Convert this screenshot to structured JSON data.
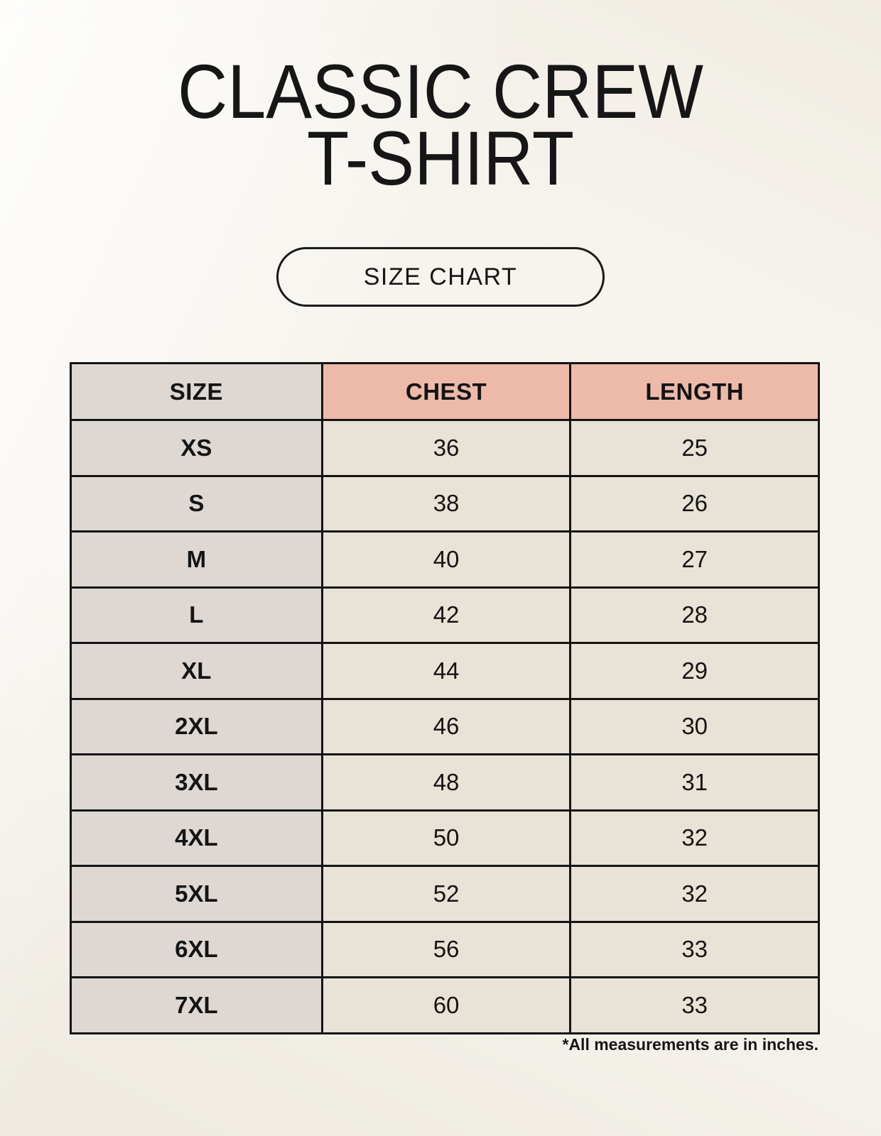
{
  "header": {
    "title_line1": "CLASSIC CREW",
    "title_line2": "T-SHIRT",
    "button_label": "SIZE CHART"
  },
  "colors": {
    "page_background": "#f7f4ee",
    "header_pink": "#edbaaa",
    "size_column_gray": "#ded7d2",
    "cell_cream": "#e9e2d6",
    "border_black": "#141414"
  },
  "chart_data": {
    "type": "table",
    "title": "CLASSIC CREW T-SHIRT",
    "subtitle": "SIZE CHART",
    "note": "*All measurements are in inches.",
    "columns": [
      "SIZE",
      "CHEST",
      "LENGTH"
    ],
    "rows": [
      {
        "size": "XS",
        "chest": "36",
        "length": "25"
      },
      {
        "size": "S",
        "chest": "38",
        "length": "26"
      },
      {
        "size": "M",
        "chest": "40",
        "length": "27"
      },
      {
        "size": "L",
        "chest": "42",
        "length": "28"
      },
      {
        "size": "XL",
        "chest": "44",
        "length": "29"
      },
      {
        "size": "2XL",
        "chest": "46",
        "length": "30"
      },
      {
        "size": "3XL",
        "chest": "48",
        "length": "31"
      },
      {
        "size": "4XL",
        "chest": "50",
        "length": "32"
      },
      {
        "size": "5XL",
        "chest": "52",
        "length": "32"
      },
      {
        "size": "6XL",
        "chest": "56",
        "length": "33"
      },
      {
        "size": "7XL",
        "chest": "60",
        "length": "33"
      }
    ]
  }
}
